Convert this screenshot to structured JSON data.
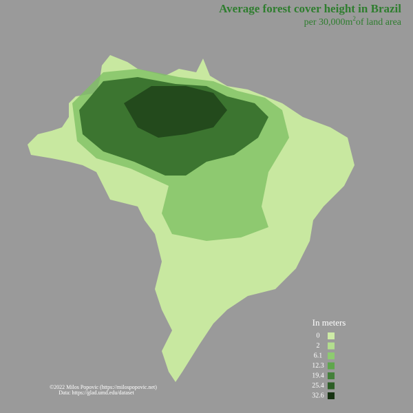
{
  "title": "Average forest cover height in Brazil",
  "subtitle": {
    "text": "per 30,000m",
    "superscript": "2",
    "rest": "of land area"
  },
  "legend": {
    "title": "In meters",
    "items": [
      {
        "value": 0,
        "color": "#cdeba6"
      },
      {
        "value": 2,
        "color": "#b3de8e"
      },
      {
        "value": 6.1,
        "color": "#8ecb70"
      },
      {
        "value": 12.3,
        "color": "#5fa64c"
      },
      {
        "value": 19.4,
        "color": "#44803a"
      },
      {
        "value": 25.4,
        "color": "#2d5e26"
      },
      {
        "value": 32.6,
        "color": "#173212"
      }
    ]
  },
  "credits": [
    "©2022 Milos Popovic (https://milospopovic.net)",
    "Data: https://glad.umd.edu/dataset"
  ]
}
